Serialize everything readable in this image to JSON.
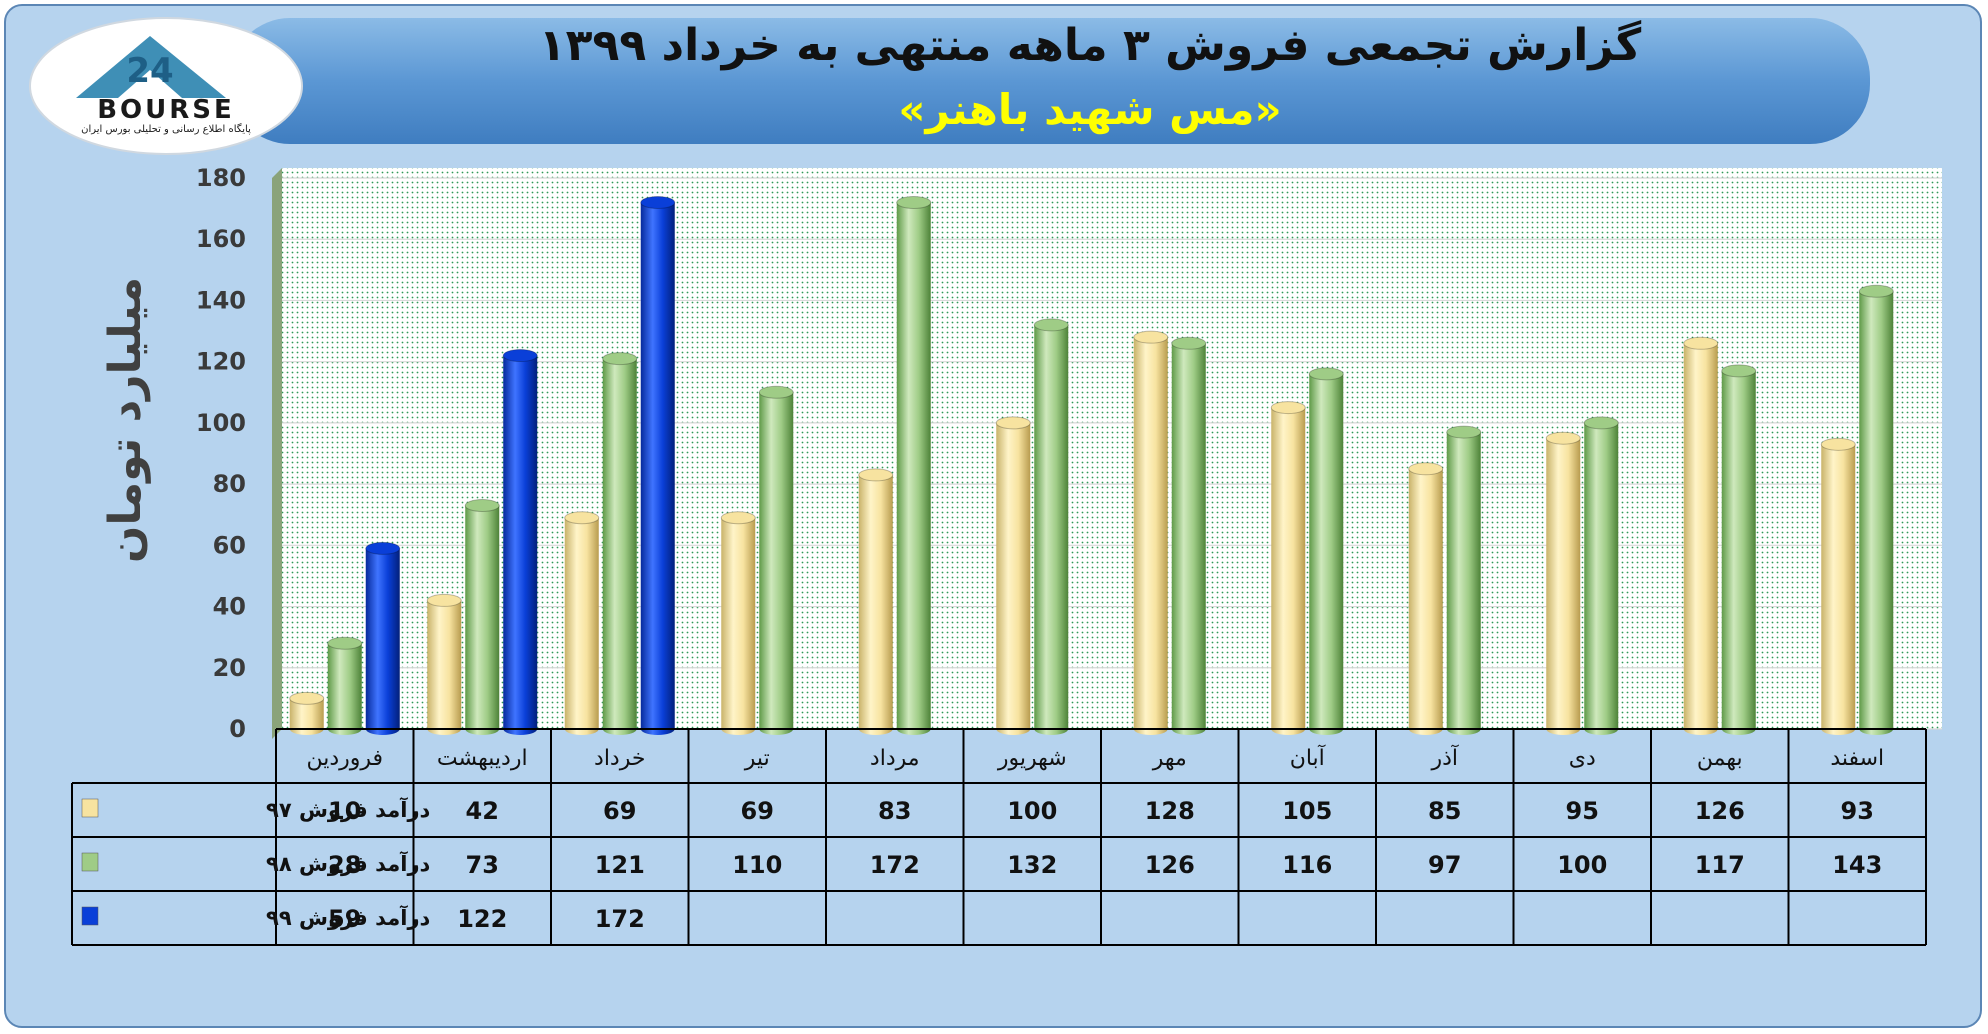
{
  "header": {
    "title": "گزارش تجمعی فروش ۳ ماهه منتهی به خرداد ۱۳۹۹",
    "subtitle": "«مس شهید باهنر»"
  },
  "logo": {
    "text": "BOURSE",
    "number": "24",
    "tagline": "پایگاه اطلاع رسانی و تحلیلی بورس ایران"
  },
  "colors": {
    "s97": "#f7e3a0",
    "s98": "#9fcc86",
    "s99": "#0a3fd8",
    "title_text": "#111111",
    "subtitle_text": "#ffff00",
    "header_bg": "#5b97d4",
    "frame_bg": "#b6d3ee"
  },
  "chart_data": {
    "type": "bar",
    "ylabel": "میلیارد تومان",
    "ylim": [
      0,
      180
    ],
    "yticks": [
      0,
      20,
      40,
      60,
      80,
      100,
      120,
      140,
      160,
      180
    ],
    "grid": true,
    "legend": "table-left",
    "categories": [
      "فروردین",
      "اردیبهشت",
      "خرداد",
      "تیر",
      "مرداد",
      "شهریور",
      "مهر",
      "آبان",
      "آذر",
      "دی",
      "بهمن",
      "اسفند"
    ],
    "series": [
      {
        "name": "درآمد فروش ۹۷",
        "color_key": "s97",
        "values": [
          10,
          42,
          69,
          69,
          83,
          100,
          128,
          105,
          85,
          95,
          126,
          93
        ]
      },
      {
        "name": "درآمد فروش ۹۸",
        "color_key": "s98",
        "values": [
          28,
          73,
          121,
          110,
          172,
          132,
          126,
          116,
          97,
          100,
          117,
          143
        ]
      },
      {
        "name": "درآمد فروش ۹۹",
        "color_key": "s99",
        "values": [
          59,
          122,
          172,
          null,
          null,
          null,
          null,
          null,
          null,
          null,
          null,
          null
        ]
      }
    ]
  }
}
